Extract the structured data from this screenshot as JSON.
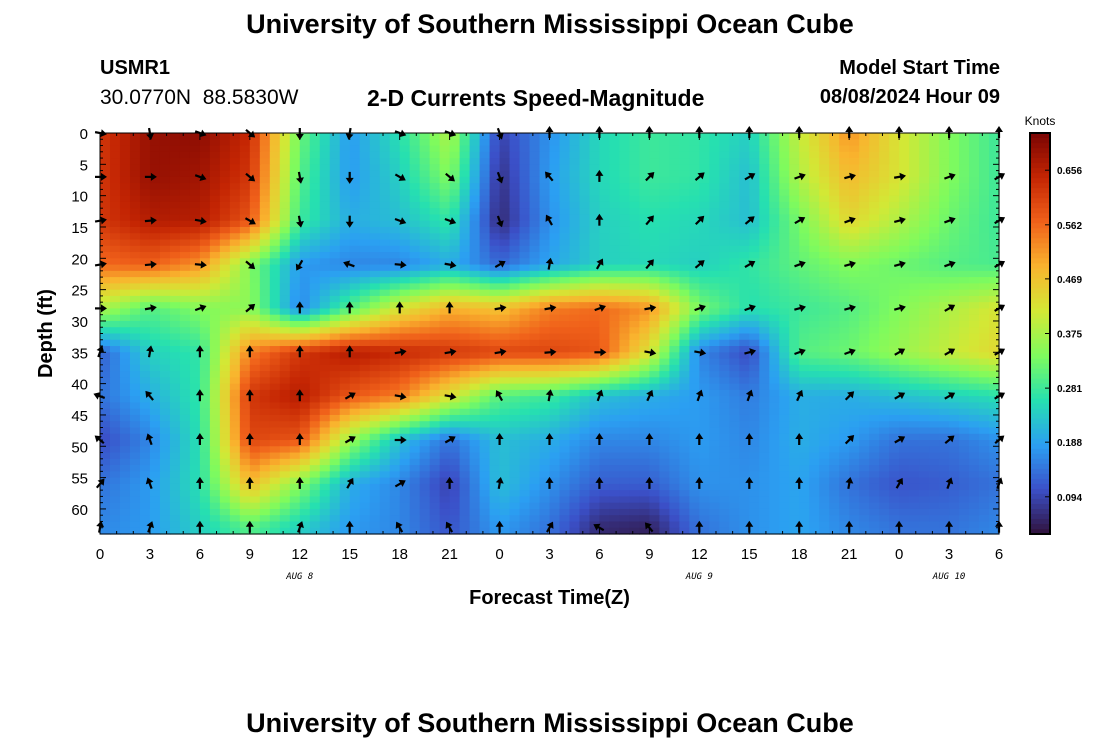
{
  "header": {
    "title": "University of Southern Mississippi Ocean Cube",
    "station_id": "USMR1",
    "coordinates": "30.0770N  88.5830W",
    "subtitle": "2-D Currents Speed-Magnitude",
    "model_start_label": "Model Start Time",
    "model_start_value": "08/08/2024 Hour 09"
  },
  "footer": {
    "title": "University of Southern Mississippi Ocean Cube"
  },
  "chart_data": {
    "type": "heatmap",
    "title": "2-D Currents Speed-Magnitude",
    "xlabel": "Forecast Time(Z)",
    "ylabel": "Depth (ft)",
    "x_tick_labels": [
      "0",
      "3",
      "6",
      "9",
      "12",
      "15",
      "18",
      "21",
      "0",
      "3",
      "6",
      "9",
      "12",
      "15",
      "18",
      "21",
      "0",
      "3",
      "6"
    ],
    "x_range_hours": [
      0,
      54
    ],
    "date_labels": [
      {
        "label": "AUG 8",
        "hour": 12
      },
      {
        "label": "AUG 9",
        "hour": 36
      },
      {
        "label": "AUG 10",
        "hour": 51
      }
    ],
    "y_ticks": [
      0,
      5,
      10,
      15,
      20,
      25,
      30,
      35,
      40,
      45,
      50,
      55,
      60
    ],
    "y_range_ft": [
      0,
      64
    ],
    "colorbar": {
      "unit": "Knots",
      "ticks": [
        0.656,
        0.562,
        0.469,
        0.375,
        0.281,
        0.188,
        0.094
      ],
      "range": [
        0.03,
        0.72
      ]
    },
    "colormap": [
      "#30123b",
      "#3b50c8",
      "#2b9ff2",
      "#26e0b0",
      "#7ffb5d",
      "#d3e835",
      "#f9b42e",
      "#f0611a",
      "#c42503",
      "#7a0403"
    ],
    "depth_bins_ft": [
      0,
      7,
      14,
      21,
      28,
      35,
      42,
      49,
      56,
      63
    ],
    "speed_knots": [
      [
        0.62,
        0.69,
        0.7,
        0.64,
        0.32,
        0.18,
        0.26,
        0.38,
        0.09,
        0.17,
        0.25,
        0.28,
        0.27,
        0.24,
        0.4,
        0.52,
        0.42,
        0.34,
        0.28
      ],
      [
        0.62,
        0.69,
        0.68,
        0.62,
        0.3,
        0.18,
        0.24,
        0.34,
        0.07,
        0.18,
        0.25,
        0.28,
        0.27,
        0.22,
        0.38,
        0.48,
        0.42,
        0.34,
        0.28
      ],
      [
        0.62,
        0.66,
        0.66,
        0.58,
        0.28,
        0.2,
        0.22,
        0.27,
        0.06,
        0.17,
        0.24,
        0.26,
        0.25,
        0.22,
        0.33,
        0.44,
        0.38,
        0.32,
        0.28
      ],
      [
        0.56,
        0.57,
        0.52,
        0.34,
        0.18,
        0.16,
        0.16,
        0.2,
        0.13,
        0.19,
        0.24,
        0.25,
        0.24,
        0.27,
        0.31,
        0.34,
        0.32,
        0.3,
        0.29
      ],
      [
        0.38,
        0.3,
        0.34,
        0.35,
        0.16,
        0.3,
        0.42,
        0.49,
        0.47,
        0.54,
        0.56,
        0.52,
        0.33,
        0.26,
        0.28,
        0.3,
        0.34,
        0.38,
        0.42
      ],
      [
        0.12,
        0.24,
        0.27,
        0.54,
        0.62,
        0.66,
        0.64,
        0.62,
        0.6,
        0.6,
        0.58,
        0.42,
        0.16,
        0.1,
        0.3,
        0.32,
        0.36,
        0.4,
        0.44
      ],
      [
        0.14,
        0.2,
        0.27,
        0.62,
        0.66,
        0.58,
        0.54,
        0.42,
        0.3,
        0.28,
        0.22,
        0.2,
        0.18,
        0.15,
        0.2,
        0.2,
        0.22,
        0.24,
        0.26
      ],
      [
        0.1,
        0.16,
        0.26,
        0.6,
        0.58,
        0.36,
        0.22,
        0.14,
        0.22,
        0.2,
        0.16,
        0.16,
        0.18,
        0.16,
        0.2,
        0.18,
        0.14,
        0.14,
        0.17
      ],
      [
        0.14,
        0.18,
        0.26,
        0.48,
        0.34,
        0.2,
        0.16,
        0.09,
        0.22,
        0.17,
        0.12,
        0.12,
        0.17,
        0.17,
        0.19,
        0.14,
        0.11,
        0.12,
        0.14
      ],
      [
        0.16,
        0.18,
        0.24,
        0.3,
        0.24,
        0.18,
        0.16,
        0.11,
        0.18,
        0.14,
        0.06,
        0.05,
        0.14,
        0.17,
        0.19,
        0.16,
        0.14,
        0.14,
        0.16
      ]
    ],
    "arrow_directions_deg": [
      [
        100,
        170,
        110,
        130,
        180,
        190,
        110,
        110,
        160,
        0,
        0,
        0,
        0,
        0,
        0,
        0,
        0,
        0,
        0
      ],
      [
        90,
        90,
        110,
        130,
        170,
        180,
        120,
        130,
        160,
        320,
        0,
        45,
        50,
        60,
        70,
        75,
        80,
        70,
        60
      ],
      [
        80,
        85,
        100,
        120,
        170,
        180,
        110,
        110,
        160,
        330,
        0,
        40,
        45,
        50,
        60,
        70,
        75,
        70,
        60
      ],
      [
        80,
        85,
        95,
        130,
        210,
        290,
        95,
        100,
        60,
        10,
        30,
        40,
        50,
        60,
        70,
        75,
        75,
        70,
        60
      ],
      [
        90,
        80,
        70,
        50,
        0,
        0,
        0,
        0,
        80,
        80,
        70,
        80,
        70,
        70,
        75,
        75,
        75,
        60,
        60
      ],
      [
        20,
        10,
        0,
        0,
        0,
        0,
        80,
        80,
        80,
        85,
        90,
        100,
        100,
        75,
        70,
        70,
        60,
        60,
        60
      ],
      [
        290,
        320,
        0,
        0,
        0,
        60,
        100,
        100,
        330,
        10,
        20,
        25,
        20,
        20,
        25,
        45,
        60,
        60,
        60
      ],
      [
        310,
        340,
        0,
        0,
        0,
        60,
        90,
        60,
        0,
        0,
        0,
        0,
        0,
        0,
        0,
        45,
        60,
        50,
        50
      ],
      [
        40,
        340,
        0,
        0,
        0,
        30,
        60,
        0,
        10,
        0,
        0,
        0,
        0,
        0,
        0,
        10,
        30,
        20,
        20
      ],
      [
        10,
        20,
        0,
        0,
        20,
        0,
        330,
        330,
        0,
        30,
        300,
        320,
        0,
        0,
        0,
        0,
        0,
        0,
        0
      ]
    ]
  }
}
